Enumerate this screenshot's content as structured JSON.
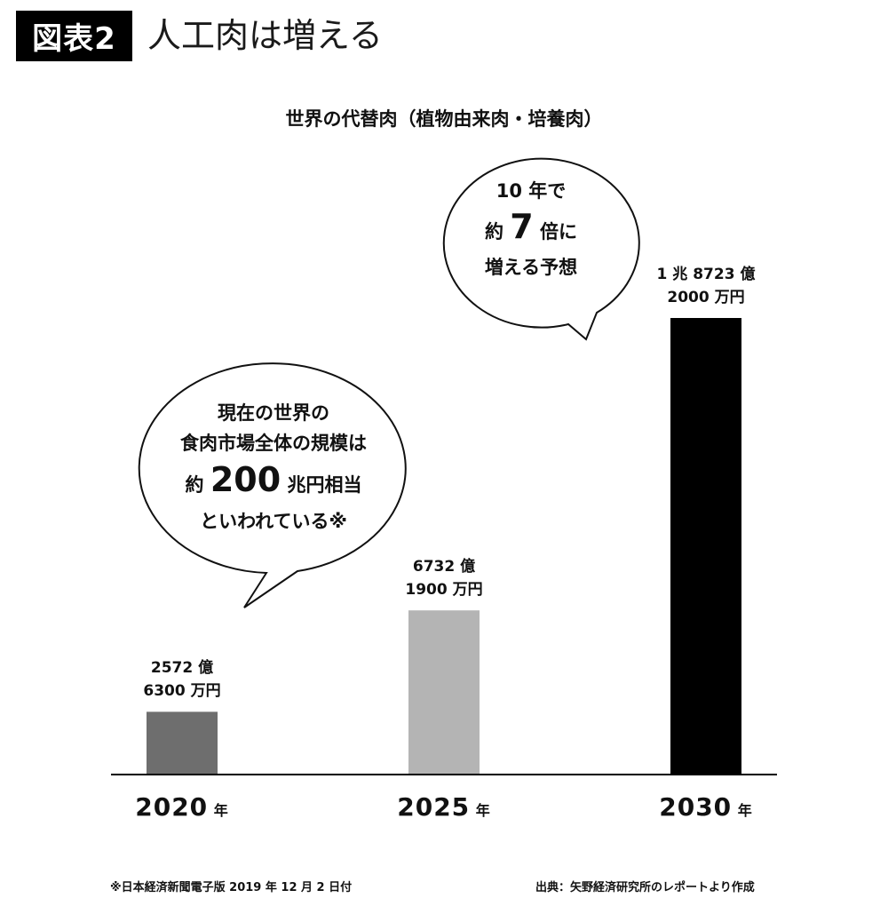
{
  "badge": "図表2",
  "headline": "人工肉は増える",
  "chart_data": {
    "type": "bar",
    "title": "世界の代替肉（植物由来肉・培養肉）",
    "categories": [
      "2020",
      "2025",
      "2030"
    ],
    "category_suffix": "年",
    "values": [
      2572.63,
      6732.19,
      18723.2
    ],
    "unit": "億円",
    "colors": [
      "#6e6e6e",
      "#b4b4b4",
      "#000000"
    ],
    "value_labels": [
      [
        "2572 億",
        "6300 万円"
      ],
      [
        "6732 億",
        "1900 万円"
      ],
      [
        "1 兆 8723 億",
        "2000 万円"
      ]
    ],
    "ylim": [
      0,
      20000
    ],
    "grid": false
  },
  "bubble_left": {
    "line1": "現在の世界の",
    "line2": "食肉市場全体の規模は",
    "line3_pre": "約",
    "line3_num": "200",
    "line3_post": "兆円相当",
    "line4": "といわれている※"
  },
  "bubble_right": {
    "line1": "10 年で",
    "line2_pre": "約",
    "line2_num": "7",
    "line2_post": "倍に",
    "line3": "増える予想"
  },
  "footnote": "※日本経済新聞電子版 2019 年 12 月 2 日付",
  "source": "出典：矢野経済研究所のレポートより作成"
}
